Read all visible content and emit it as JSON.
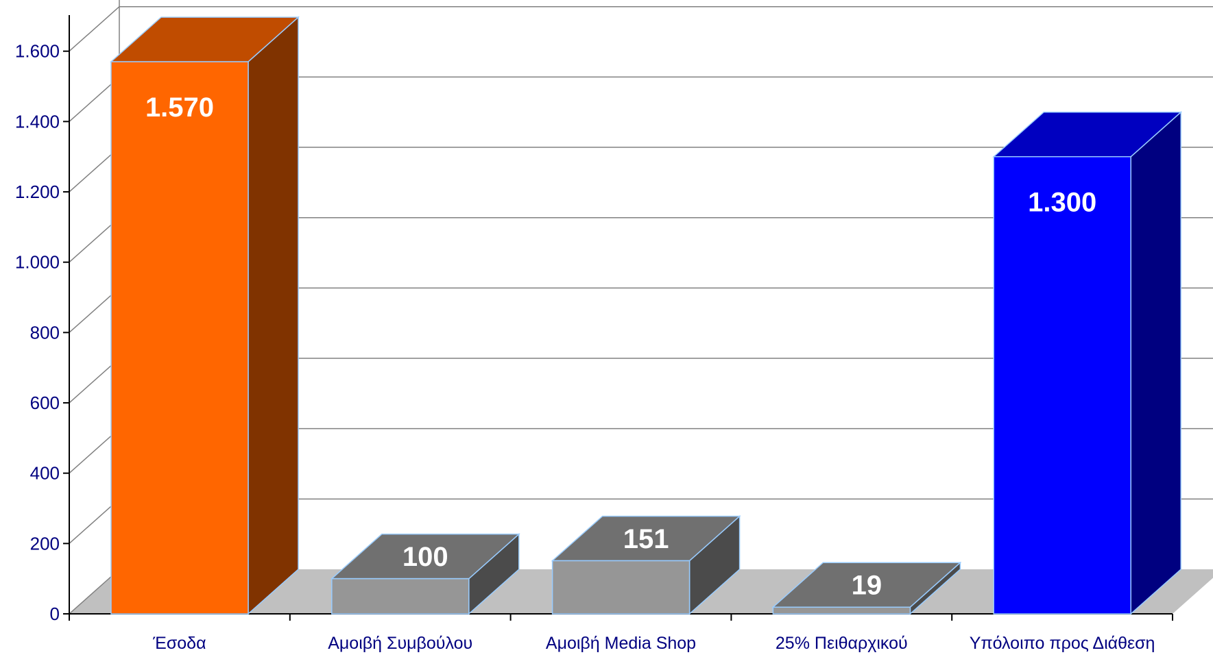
{
  "chart_data": {
    "type": "bar",
    "title": "",
    "xlabel": "",
    "ylabel": "",
    "categories": [
      "Έσοδα",
      "Αμοιβή Συμβούλου",
      "Αμοιβή Media Shop",
      "25% Πειθαρχικού",
      "Υπόλοιπο προς Διάθεση"
    ],
    "values": [
      1570,
      100,
      151,
      19,
      1300
    ],
    "data_labels": [
      "1.570",
      "100",
      "151",
      "19",
      "1.300"
    ],
    "bar_base": [
      0,
      0,
      0,
      0,
      0
    ],
    "ylim": [
      0,
      1700
    ],
    "yticks": [
      0,
      200,
      400,
      600,
      800,
      1000,
      1200,
      1400,
      1600
    ],
    "ytick_labels": [
      "0",
      "200",
      "400",
      "600",
      "800",
      "1.000",
      "1.200",
      "1.400",
      "1.600"
    ],
    "grid": true,
    "three_d": true,
    "legend": "none",
    "colors": {
      "bars": [
        {
          "front": "#ff6600",
          "top": "#c04c00",
          "side": "#803300"
        },
        {
          "front": "#969696",
          "top": "#707070",
          "side": "#4b4b4b"
        },
        {
          "front": "#969696",
          "top": "#707070",
          "side": "#4b4b4b"
        },
        {
          "front": "#969696",
          "top": "#707070",
          "side": "#4b4b4b"
        },
        {
          "front": "#0000ff",
          "top": "#0000c0",
          "side": "#000080"
        }
      ],
      "bar_edge": "#99ccff",
      "floor": "#c0c0c0",
      "grid": "#808080",
      "axis": "#000000",
      "text": "#000080"
    }
  }
}
